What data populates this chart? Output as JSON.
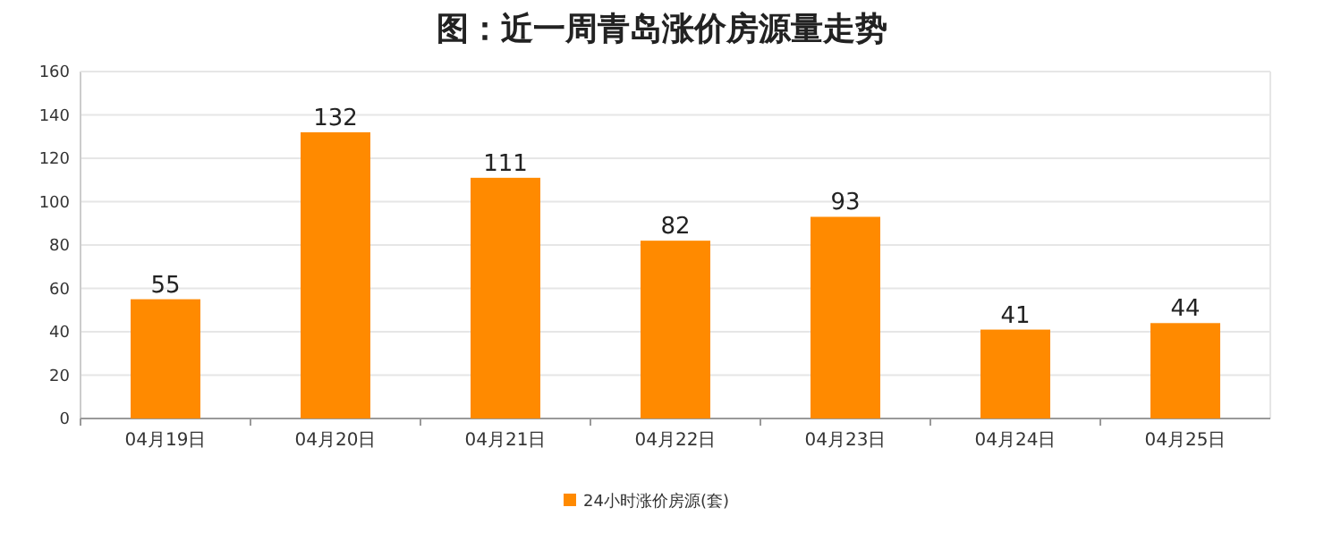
{
  "chart_data": {
    "type": "bar",
    "title": "图：近一周青岛涨价房源量走势",
    "categories": [
      "04月19日",
      "04月20日",
      "04月21日",
      "04月22日",
      "04月23日",
      "04月24日",
      "04月25日"
    ],
    "series": [
      {
        "name": "24小时涨价房源(套)",
        "color": "#ff8a00",
        "values": [
          55,
          132,
          111,
          82,
          93,
          41,
          44
        ]
      }
    ],
    "ylim": [
      0,
      160
    ],
    "yticks": [
      0,
      20,
      40,
      60,
      80,
      100,
      120,
      140,
      160
    ],
    "grid": "y",
    "legend": "bottom",
    "data_labels": true
  }
}
